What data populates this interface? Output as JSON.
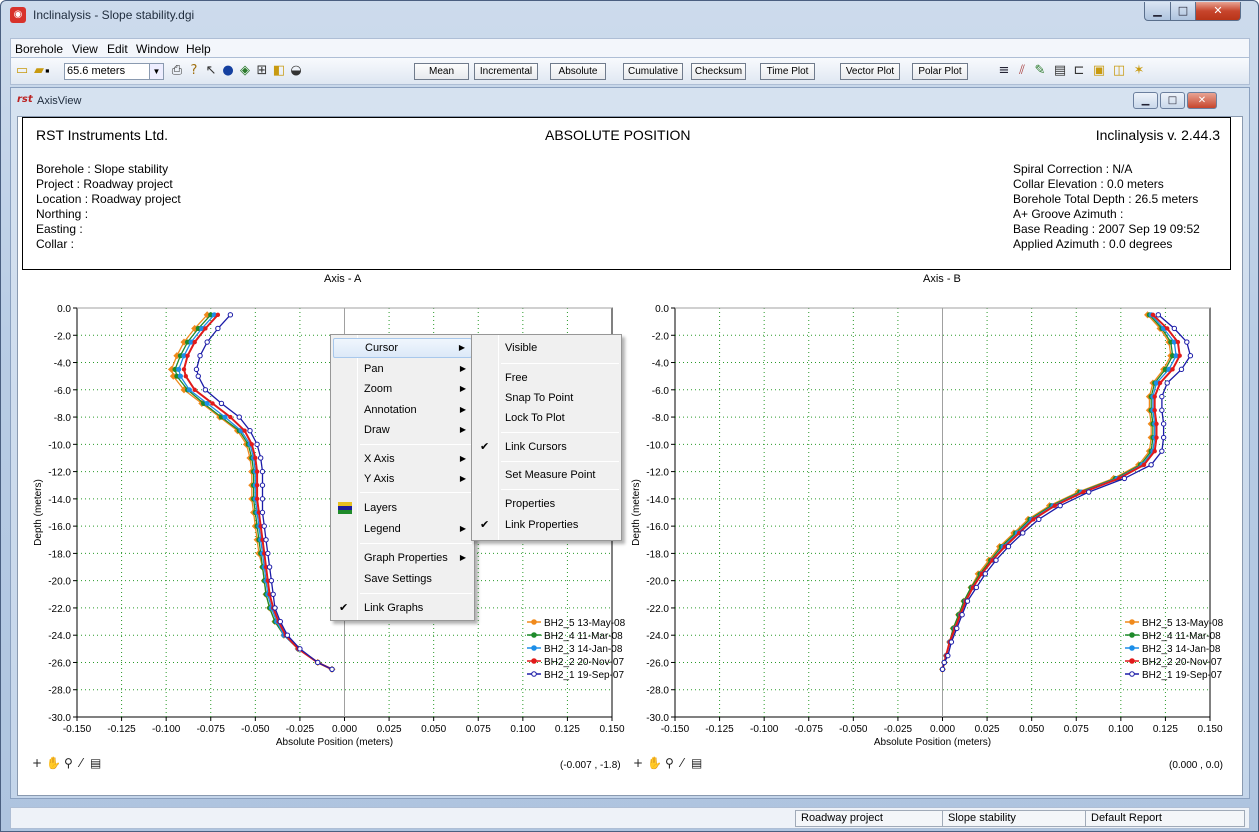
{
  "window": {
    "title": "Inclinalysis - Slope stability.dgi",
    "min": "▁",
    "max": "□",
    "close": "✕"
  },
  "menubar": [
    "Borehole",
    "View",
    "Edit",
    "Window",
    "Help"
  ],
  "toolbar": {
    "depth_value": "65.6 meters",
    "buttons": [
      "Mean",
      "Incremental",
      "Absolute",
      "Cumulative",
      "Checksum",
      "Time Plot",
      "Vector Plot",
      "Polar Plot"
    ]
  },
  "child": {
    "title": "AxisView"
  },
  "report": {
    "company": "RST Instruments Ltd.",
    "heading": "ABSOLUTE POSITION",
    "version": "Inclinalysis v. 2.44.3",
    "left": [
      "Borehole : Slope stability",
      "Project : Roadway project",
      "Location : Roadway project",
      "Northing :",
      "Easting :",
      "Collar :"
    ],
    "right": [
      "Spiral Correction : N/A",
      "Collar Elevation : 0.0 meters",
      "Borehole Total Depth : 26.5 meters",
      "A+ Groove Azimuth :",
      "Base Reading : 2007 Sep 19 09:52",
      "Applied Azimuth : 0.0 degrees"
    ]
  },
  "legend": [
    "BH2_5 13-May-08",
    "BH2_4 11-Mar-08",
    "BH2_3 14-Jan-08",
    "BH2_2 20-Nov-07",
    "BH2_1 19-Sep-07"
  ],
  "series_colors": [
    "#f08a1c",
    "#1e8a2a",
    "#1c8ee8",
    "#e01b1b",
    "#1c1ca8"
  ],
  "chart_data": [
    {
      "type": "line",
      "title": "Axis - A",
      "xlabel": "Absolute Position (meters)",
      "ylabel": "Depth (meters)",
      "xlim": [
        -0.15,
        0.15
      ],
      "ylim": [
        -30.0,
        0.0
      ],
      "xticks": [
        "-0.150",
        "-0.125",
        "-0.100",
        "-0.075",
        "-0.050",
        "-0.025",
        "0.000",
        "0.025",
        "0.050",
        "0.075",
        "0.100",
        "0.125",
        "0.150"
      ],
      "yticks": [
        "0.0",
        "-2.0",
        "-4.0",
        "-6.0",
        "-8.0",
        "-10.0",
        "-12.0",
        "-14.0",
        "-16.0",
        "-18.0",
        "-20.0",
        "-22.0",
        "-24.0",
        "-26.0",
        "-28.0",
        "-30.0"
      ],
      "grid": true,
      "legend_position": "bottom-right",
      "depth": [
        -0.5,
        -1.5,
        -2.5,
        -3.5,
        -4.5,
        -5.0,
        -6.0,
        -7.0,
        -8.0,
        -9.0,
        -10.0,
        -11.0,
        -12.0,
        -13.0,
        -14.0,
        -15.0,
        -16.0,
        -17.0,
        -18.0,
        -19.0,
        -20.0,
        -21.0,
        -22.0,
        -23.0,
        -24.0,
        -25.0,
        -26.0,
        -26.5
      ],
      "series": [
        {
          "name": "BH2_5 13-May-08",
          "x": [
            -0.077,
            -0.084,
            -0.09,
            -0.094,
            -0.097,
            -0.096,
            -0.09,
            -0.08,
            -0.07,
            -0.06,
            -0.055,
            -0.053,
            -0.052,
            -0.052,
            -0.052,
            -0.051,
            -0.05,
            -0.049,
            -0.048,
            -0.046,
            -0.045,
            -0.044,
            -0.042,
            -0.039,
            -0.034,
            -0.026,
            -0.015,
            -0.007
          ]
        },
        {
          "name": "BH2_4 11-Mar-08",
          "x": [
            -0.075,
            -0.082,
            -0.088,
            -0.092,
            -0.095,
            -0.094,
            -0.088,
            -0.079,
            -0.069,
            -0.059,
            -0.054,
            -0.052,
            -0.051,
            -0.051,
            -0.051,
            -0.05,
            -0.049,
            -0.048,
            -0.047,
            -0.046,
            -0.045,
            -0.044,
            -0.042,
            -0.039,
            -0.034,
            -0.026,
            -0.015,
            -0.007
          ]
        },
        {
          "name": "BH2_3 14-Jan-08",
          "x": [
            -0.073,
            -0.08,
            -0.086,
            -0.09,
            -0.093,
            -0.092,
            -0.087,
            -0.077,
            -0.067,
            -0.058,
            -0.053,
            -0.051,
            -0.05,
            -0.05,
            -0.05,
            -0.049,
            -0.048,
            -0.047,
            -0.046,
            -0.045,
            -0.044,
            -0.043,
            -0.041,
            -0.038,
            -0.034,
            -0.026,
            -0.015,
            -0.007
          ]
        },
        {
          "name": "BH2_2 20-Nov-07",
          "x": [
            -0.071,
            -0.078,
            -0.084,
            -0.088,
            -0.09,
            -0.089,
            -0.084,
            -0.074,
            -0.064,
            -0.056,
            -0.052,
            -0.05,
            -0.049,
            -0.049,
            -0.049,
            -0.048,
            -0.047,
            -0.046,
            -0.045,
            -0.044,
            -0.043,
            -0.042,
            -0.04,
            -0.037,
            -0.033,
            -0.026,
            -0.015,
            -0.007
          ]
        },
        {
          "name": "BH2_1 19-Sep-07",
          "x": [
            -0.064,
            -0.071,
            -0.077,
            -0.081,
            -0.083,
            -0.082,
            -0.078,
            -0.069,
            -0.059,
            -0.053,
            -0.049,
            -0.047,
            -0.046,
            -0.046,
            -0.046,
            -0.046,
            -0.045,
            -0.044,
            -0.043,
            -0.042,
            -0.041,
            -0.04,
            -0.039,
            -0.036,
            -0.032,
            -0.025,
            -0.015,
            -0.007
          ]
        }
      ]
    },
    {
      "type": "line",
      "title": "Axis - B",
      "xlabel": "Absolute Position (meters)",
      "ylabel": "Depth (meters)",
      "xlim": [
        -0.15,
        0.15
      ],
      "ylim": [
        -30.0,
        0.0
      ],
      "xticks": [
        "-0.150",
        "-0.125",
        "-0.100",
        "-0.075",
        "-0.050",
        "-0.025",
        "0.000",
        "0.025",
        "0.050",
        "0.075",
        "0.100",
        "0.125",
        "0.150"
      ],
      "yticks": [
        "0.0",
        "-2.0",
        "-4.0",
        "-6.0",
        "-8.0",
        "-10.0",
        "-12.0",
        "-14.0",
        "-16.0",
        "-18.0",
        "-20.0",
        "-22.0",
        "-24.0",
        "-26.0",
        "-28.0",
        "-30.0"
      ],
      "grid": true,
      "legend_position": "bottom-right",
      "depth": [
        -0.5,
        -1.5,
        -2.5,
        -3.5,
        -4.5,
        -5.5,
        -6.5,
        -7.5,
        -8.5,
        -9.5,
        -10.5,
        -11.5,
        -12.5,
        -13.5,
        -14.5,
        -15.5,
        -16.5,
        -17.5,
        -18.5,
        -19.5,
        -20.5,
        -21.5,
        -22.5,
        -23.5,
        -24.5,
        -25.5,
        -26.0,
        -26.5
      ],
      "series": [
        {
          "name": "BH2_5 13-May-08",
          "x": [
            0.115,
            0.122,
            0.127,
            0.128,
            0.124,
            0.118,
            0.116,
            0.116,
            0.117,
            0.117,
            0.116,
            0.11,
            0.096,
            0.076,
            0.06,
            0.048,
            0.04,
            0.032,
            0.026,
            0.02,
            0.016,
            0.012,
            0.009,
            0.006,
            0.004,
            0.002,
            0.001,
            0.0
          ]
        },
        {
          "name": "BH2_4 11-Mar-08",
          "x": [
            0.116,
            0.123,
            0.128,
            0.129,
            0.125,
            0.119,
            0.117,
            0.117,
            0.118,
            0.118,
            0.117,
            0.111,
            0.097,
            0.077,
            0.061,
            0.049,
            0.041,
            0.033,
            0.027,
            0.021,
            0.016,
            0.012,
            0.009,
            0.006,
            0.004,
            0.002,
            0.001,
            0.0
          ]
        },
        {
          "name": "BH2_3 14-Jan-08",
          "x": [
            0.117,
            0.124,
            0.13,
            0.131,
            0.127,
            0.12,
            0.118,
            0.118,
            0.119,
            0.119,
            0.118,
            0.112,
            0.098,
            0.078,
            0.062,
            0.05,
            0.042,
            0.034,
            0.028,
            0.022,
            0.017,
            0.013,
            0.01,
            0.007,
            0.004,
            0.002,
            0.001,
            0.0
          ]
        },
        {
          "name": "BH2_2 20-Nov-07",
          "x": [
            0.118,
            0.126,
            0.132,
            0.133,
            0.129,
            0.122,
            0.119,
            0.119,
            0.12,
            0.12,
            0.119,
            0.113,
            0.099,
            0.079,
            0.063,
            0.051,
            0.043,
            0.035,
            0.028,
            0.022,
            0.017,
            0.013,
            0.01,
            0.007,
            0.004,
            0.002,
            0.001,
            0.0
          ]
        },
        {
          "name": "BH2_1 19-Sep-07",
          "x": [
            0.121,
            0.13,
            0.137,
            0.139,
            0.134,
            0.126,
            0.123,
            0.123,
            0.124,
            0.124,
            0.123,
            0.117,
            0.102,
            0.082,
            0.066,
            0.054,
            0.045,
            0.037,
            0.03,
            0.024,
            0.019,
            0.014,
            0.011,
            0.008,
            0.005,
            0.003,
            0.001,
            0.0
          ]
        }
      ]
    }
  ],
  "cursor_readouts": [
    "(-0.007 , -1.8)",
    "(0.000 , 0.0)"
  ],
  "context_menu": {
    "items": [
      "Cursor",
      "Pan",
      "Zoom",
      "Annotation",
      "Draw",
      "X Axis",
      "Y Axis",
      "Layers",
      "Legend",
      "Graph Properties",
      "Save Settings",
      "Link Graphs"
    ]
  },
  "cursor_submenu": {
    "items": [
      "Visible",
      "Free",
      "Snap To Point",
      "Lock To Plot",
      "Link Cursors",
      "Set Measure Point",
      "Properties",
      "Link Properties"
    ]
  },
  "status": [
    "Roadway project",
    "Slope stability",
    "Default Report"
  ]
}
